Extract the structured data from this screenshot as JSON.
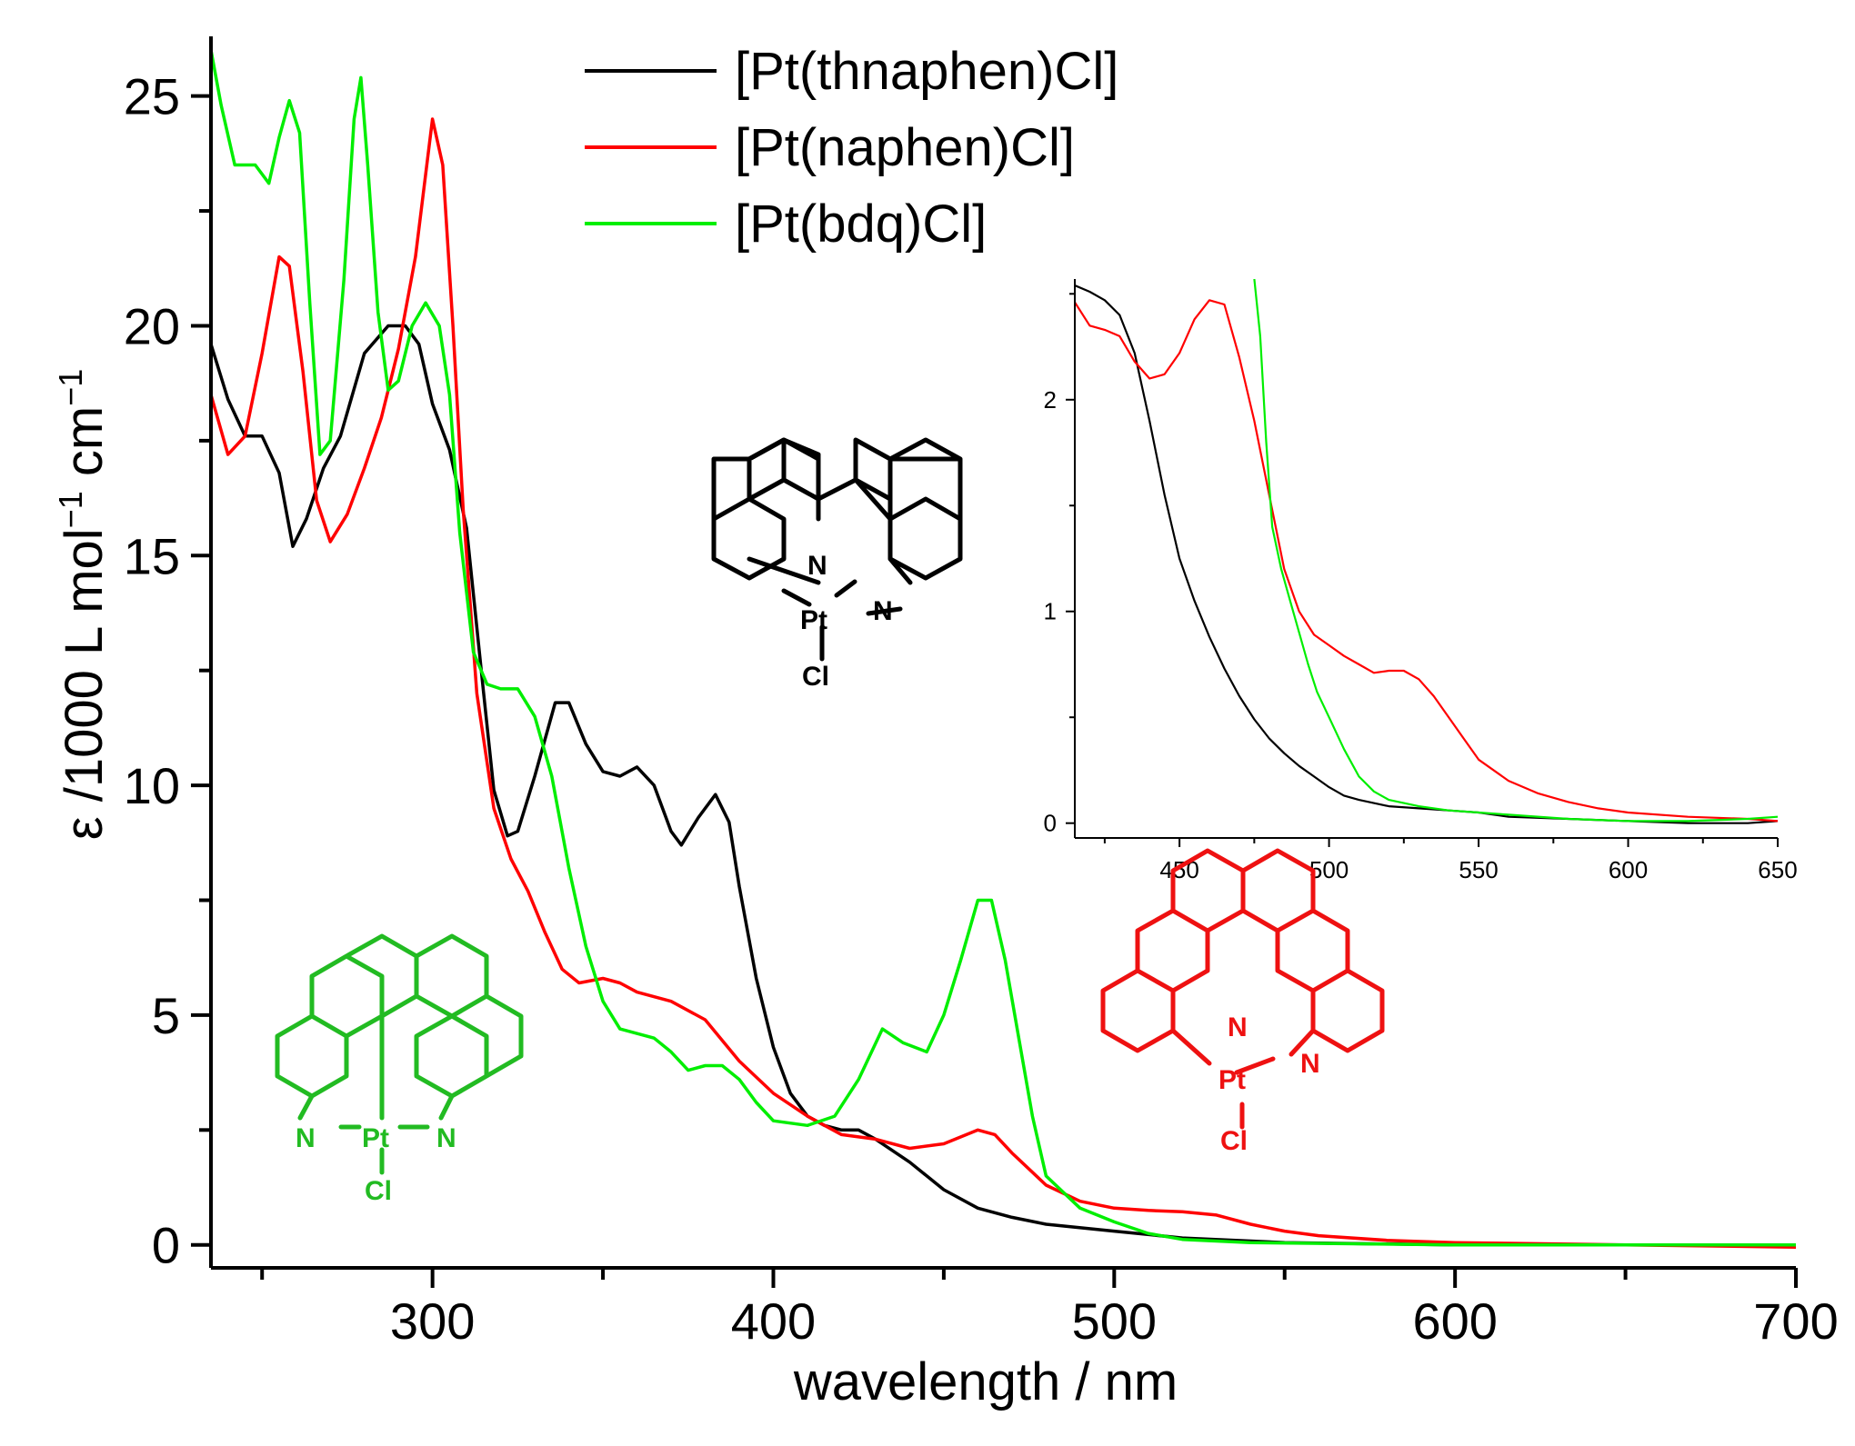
{
  "chart_data": {
    "type": "line",
    "title": "",
    "xlabel": "wavelength / nm",
    "ylabel": {
      "prefix": "ε /1000 L mol",
      "exp1": "−1",
      "mid": " cm",
      "exp2": "−1"
    },
    "xlim": [
      235,
      700
    ],
    "ylim": [
      -0.5,
      26.2
    ],
    "xticks": [
      "300",
      "400",
      "500",
      "600",
      "700"
    ],
    "yticks": [
      "0",
      "5",
      "10",
      "15",
      "20",
      "25"
    ],
    "legend_position": "top-center",
    "series": [
      {
        "name": "[Pt(thnaphen)Cl]",
        "color": "#000000",
        "points": [
          [
            235,
            19.6
          ],
          [
            240,
            18.4
          ],
          [
            245,
            17.6
          ],
          [
            250,
            17.6
          ],
          [
            255,
            16.8
          ],
          [
            259,
            15.2
          ],
          [
            263,
            15.8
          ],
          [
            268,
            16.9
          ],
          [
            273,
            17.6
          ],
          [
            280,
            19.4
          ],
          [
            287,
            20.0
          ],
          [
            292,
            20.0
          ],
          [
            296,
            19.6
          ],
          [
            300,
            18.3
          ],
          [
            305,
            17.3
          ],
          [
            310,
            15.6
          ],
          [
            315,
            12.0
          ],
          [
            318,
            9.9
          ],
          [
            322,
            8.9
          ],
          [
            325,
            9.0
          ],
          [
            330,
            10.2
          ],
          [
            336,
            11.8
          ],
          [
            340,
            11.8
          ],
          [
            345,
            10.9
          ],
          [
            350,
            10.3
          ],
          [
            355,
            10.2
          ],
          [
            360,
            10.4
          ],
          [
            365,
            10.0
          ],
          [
            370,
            9.0
          ],
          [
            373,
            8.7
          ],
          [
            378,
            9.3
          ],
          [
            383,
            9.8
          ],
          [
            387,
            9.2
          ],
          [
            390,
            7.8
          ],
          [
            395,
            5.8
          ],
          [
            400,
            4.3
          ],
          [
            405,
            3.3
          ],
          [
            410,
            2.8
          ],
          [
            415,
            2.6
          ],
          [
            420,
            2.5
          ],
          [
            425,
            2.5
          ],
          [
            430,
            2.3
          ],
          [
            440,
            1.8
          ],
          [
            450,
            1.2
          ],
          [
            460,
            0.8
          ],
          [
            470,
            0.6
          ],
          [
            480,
            0.45
          ],
          [
            500,
            0.3
          ],
          [
            520,
            0.15
          ],
          [
            550,
            0.05
          ],
          [
            600,
            0.0
          ],
          [
            650,
            0.0
          ],
          [
            700,
            0.0
          ]
        ]
      },
      {
        "name": "[Pt(naphen)Cl]",
        "color": "#ff0000",
        "points": [
          [
            235,
            18.5
          ],
          [
            240,
            17.2
          ],
          [
            245,
            17.6
          ],
          [
            250,
            19.4
          ],
          [
            255,
            21.5
          ],
          [
            258,
            21.3
          ],
          [
            262,
            19.0
          ],
          [
            266,
            16.2
          ],
          [
            270,
            15.3
          ],
          [
            275,
            15.9
          ],
          [
            280,
            16.9
          ],
          [
            285,
            18.0
          ],
          [
            290,
            19.5
          ],
          [
            295,
            21.5
          ],
          [
            300,
            24.5
          ],
          [
            303,
            23.5
          ],
          [
            306,
            20.0
          ],
          [
            309,
            16.0
          ],
          [
            313,
            12.0
          ],
          [
            318,
            9.5
          ],
          [
            323,
            8.4
          ],
          [
            328,
            7.7
          ],
          [
            333,
            6.8
          ],
          [
            338,
            6.0
          ],
          [
            343,
            5.7
          ],
          [
            350,
            5.8
          ],
          [
            355,
            5.7
          ],
          [
            360,
            5.5
          ],
          [
            370,
            5.3
          ],
          [
            380,
            4.9
          ],
          [
            390,
            4.0
          ],
          [
            400,
            3.3
          ],
          [
            410,
            2.8
          ],
          [
            420,
            2.4
          ],
          [
            430,
            2.3
          ],
          [
            440,
            2.1
          ],
          [
            450,
            2.2
          ],
          [
            460,
            2.5
          ],
          [
            465,
            2.4
          ],
          [
            470,
            2.0
          ],
          [
            480,
            1.3
          ],
          [
            490,
            0.95
          ],
          [
            500,
            0.8
          ],
          [
            510,
            0.75
          ],
          [
            520,
            0.72
          ],
          [
            530,
            0.65
          ],
          [
            540,
            0.45
          ],
          [
            550,
            0.3
          ],
          [
            560,
            0.2
          ],
          [
            580,
            0.1
          ],
          [
            600,
            0.05
          ],
          [
            650,
            0.0
          ],
          [
            700,
            -0.05
          ]
        ]
      },
      {
        "name": "[Pt(bdq)Cl]",
        "color": "#00ee00",
        "points": [
          [
            235,
            26.0
          ],
          [
            238,
            24.8
          ],
          [
            242,
            23.5
          ],
          [
            248,
            23.5
          ],
          [
            252,
            23.1
          ],
          [
            255,
            24.1
          ],
          [
            258,
            24.9
          ],
          [
            261,
            24.2
          ],
          [
            264,
            20.5
          ],
          [
            267,
            17.2
          ],
          [
            270,
            17.5
          ],
          [
            274,
            21.0
          ],
          [
            277,
            24.5
          ],
          [
            279,
            25.4
          ],
          [
            281,
            23.5
          ],
          [
            284,
            20.3
          ],
          [
            287,
            18.6
          ],
          [
            290,
            18.8
          ],
          [
            294,
            20.0
          ],
          [
            298,
            20.5
          ],
          [
            302,
            20.0
          ],
          [
            305,
            18.5
          ],
          [
            308,
            15.5
          ],
          [
            312,
            12.9
          ],
          [
            316,
            12.2
          ],
          [
            320,
            12.1
          ],
          [
            325,
            12.1
          ],
          [
            330,
            11.5
          ],
          [
            335,
            10.2
          ],
          [
            340,
            8.2
          ],
          [
            345,
            6.5
          ],
          [
            350,
            5.3
          ],
          [
            355,
            4.7
          ],
          [
            365,
            4.5
          ],
          [
            370,
            4.2
          ],
          [
            375,
            3.8
          ],
          [
            380,
            3.9
          ],
          [
            385,
            3.9
          ],
          [
            390,
            3.6
          ],
          [
            395,
            3.1
          ],
          [
            400,
            2.7
          ],
          [
            410,
            2.6
          ],
          [
            418,
            2.8
          ],
          [
            425,
            3.6
          ],
          [
            432,
            4.7
          ],
          [
            438,
            4.4
          ],
          [
            445,
            4.2
          ],
          [
            450,
            5.0
          ],
          [
            455,
            6.2
          ],
          [
            460,
            7.5
          ],
          [
            464,
            7.5
          ],
          [
            468,
            6.2
          ],
          [
            472,
            4.5
          ],
          [
            476,
            2.8
          ],
          [
            480,
            1.5
          ],
          [
            490,
            0.8
          ],
          [
            500,
            0.5
          ],
          [
            510,
            0.25
          ],
          [
            520,
            0.12
          ],
          [
            540,
            0.05
          ],
          [
            600,
            0.0
          ],
          [
            700,
            0.0
          ]
        ]
      }
    ],
    "inset": {
      "xlim": [
        415,
        650
      ],
      "ylim": [
        -0.07,
        2.57
      ],
      "xticks": [
        "450",
        "500",
        "550",
        "600",
        "650"
      ],
      "yticks": [
        "0",
        "1",
        "2"
      ],
      "series": [
        {
          "name": "[Pt(thnaphen)Cl]",
          "color": "#000000",
          "points": [
            [
              415,
              2.54
            ],
            [
              420,
              2.51
            ],
            [
              425,
              2.47
            ],
            [
              430,
              2.4
            ],
            [
              435,
              2.22
            ],
            [
              440,
              1.9
            ],
            [
              445,
              1.55
            ],
            [
              450,
              1.25
            ],
            [
              455,
              1.05
            ],
            [
              460,
              0.88
            ],
            [
              465,
              0.73
            ],
            [
              470,
              0.6
            ],
            [
              475,
              0.49
            ],
            [
              480,
              0.4
            ],
            [
              485,
              0.33
            ],
            [
              490,
              0.27
            ],
            [
              495,
              0.22
            ],
            [
              500,
              0.17
            ],
            [
              505,
              0.13
            ],
            [
              510,
              0.11
            ],
            [
              520,
              0.08
            ],
            [
              530,
              0.07
            ],
            [
              540,
              0.06
            ],
            [
              550,
              0.05
            ],
            [
              560,
              0.03
            ],
            [
              580,
              0.02
            ],
            [
              600,
              0.01
            ],
            [
              620,
              0.0
            ],
            [
              640,
              0.0
            ],
            [
              650,
              0.01
            ]
          ]
        },
        {
          "name": "[Pt(naphen)Cl]",
          "color": "#ff0000",
          "points": [
            [
              415,
              2.46
            ],
            [
              420,
              2.35
            ],
            [
              425,
              2.33
            ],
            [
              430,
              2.3
            ],
            [
              435,
              2.18
            ],
            [
              440,
              2.1
            ],
            [
              445,
              2.12
            ],
            [
              450,
              2.22
            ],
            [
              455,
              2.38
            ],
            [
              460,
              2.47
            ],
            [
              465,
              2.45
            ],
            [
              470,
              2.2
            ],
            [
              475,
              1.9
            ],
            [
              480,
              1.55
            ],
            [
              485,
              1.2
            ],
            [
              490,
              1.0
            ],
            [
              495,
              0.89
            ],
            [
              500,
              0.84
            ],
            [
              505,
              0.79
            ],
            [
              510,
              0.75
            ],
            [
              515,
              0.71
            ],
            [
              520,
              0.72
            ],
            [
              525,
              0.72
            ],
            [
              530,
              0.68
            ],
            [
              535,
              0.6
            ],
            [
              540,
              0.5
            ],
            [
              545,
              0.4
            ],
            [
              550,
              0.3
            ],
            [
              560,
              0.2
            ],
            [
              570,
              0.14
            ],
            [
              580,
              0.1
            ],
            [
              590,
              0.07
            ],
            [
              600,
              0.05
            ],
            [
              620,
              0.03
            ],
            [
              640,
              0.02
            ],
            [
              650,
              0.01
            ]
          ]
        },
        {
          "name": "[Pt(bdq)Cl]",
          "color": "#00ee00",
          "points": [
            [
              475,
              2.57
            ],
            [
              477,
              2.3
            ],
            [
              479,
              1.8
            ],
            [
              481,
              1.4
            ],
            [
              484,
              1.2
            ],
            [
              487,
              1.05
            ],
            [
              490,
              0.9
            ],
            [
              493,
              0.75
            ],
            [
              496,
              0.62
            ],
            [
              500,
              0.5
            ],
            [
              505,
              0.35
            ],
            [
              510,
              0.22
            ],
            [
              515,
              0.15
            ],
            [
              520,
              0.11
            ],
            [
              530,
              0.08
            ],
            [
              540,
              0.06
            ],
            [
              550,
              0.05
            ],
            [
              560,
              0.04
            ],
            [
              580,
              0.02
            ],
            [
              600,
              0.01
            ],
            [
              620,
              0.01
            ],
            [
              640,
              0.02
            ],
            [
              650,
              0.03
            ]
          ]
        }
      ]
    }
  },
  "structures": {
    "black": {
      "color": "#000000",
      "labels": {
        "n1": "N",
        "n2": "N",
        "pt": "Pt",
        "cl": "Cl"
      }
    },
    "red": {
      "color": "#ee1111",
      "labels": {
        "n1": "N",
        "n2": "N",
        "pt": "Pt",
        "cl": "Cl"
      }
    },
    "green": {
      "color": "#22bb22",
      "labels": {
        "n1": "N",
        "n2": "N",
        "pt": "Pt",
        "cl": "Cl"
      }
    }
  }
}
